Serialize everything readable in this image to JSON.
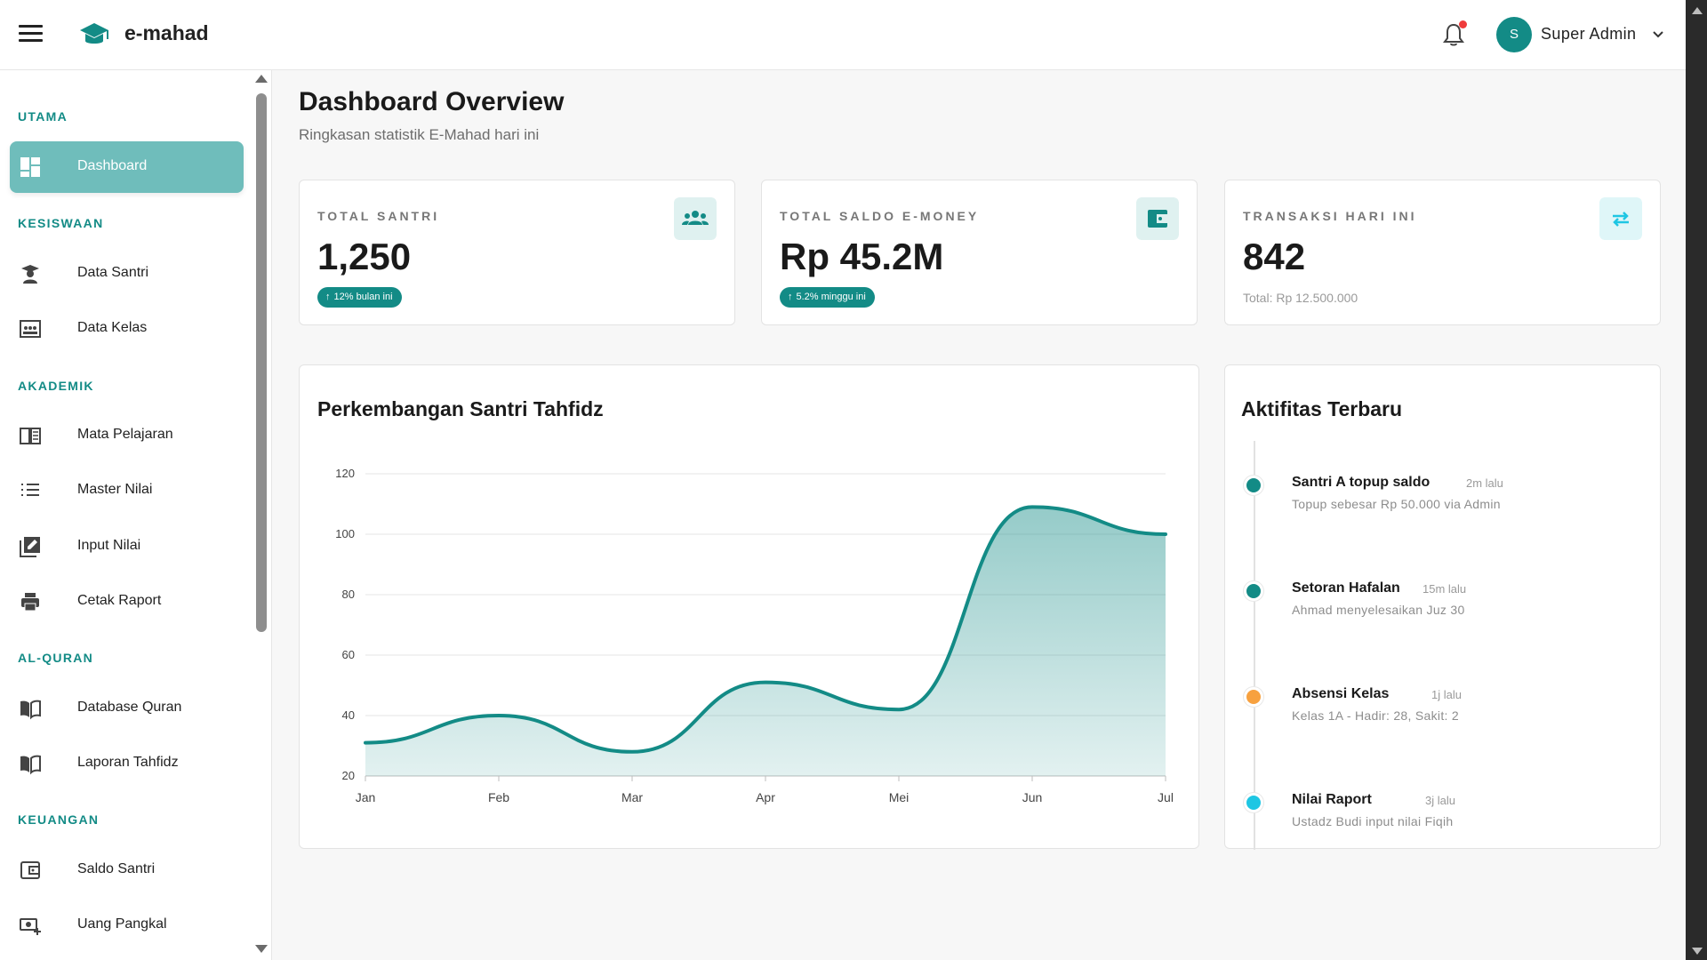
{
  "app": {
    "brand": "e-mahad"
  },
  "header": {
    "user_initial": "S",
    "user_name": "Super Admin",
    "has_notification": true
  },
  "sidebar": {
    "sections": [
      {
        "title": "UTAMA",
        "items": [
          {
            "label": "Dashboard",
            "icon": "dashboard-icon",
            "active": true
          }
        ]
      },
      {
        "title": "KESISWAAN",
        "items": [
          {
            "label": "Data Santri",
            "icon": "student-icon"
          },
          {
            "label": "Data Kelas",
            "icon": "class-icon"
          }
        ]
      },
      {
        "title": "AKADEMIK",
        "items": [
          {
            "label": "Mata Pelajaran",
            "icon": "book-icon"
          },
          {
            "label": "Master Nilai",
            "icon": "list-icon"
          },
          {
            "label": "Input Nilai",
            "icon": "edit-icon"
          },
          {
            "label": "Cetak Raport",
            "icon": "print-icon"
          }
        ]
      },
      {
        "title": "AL-QURAN",
        "items": [
          {
            "label": "Database Quran",
            "icon": "quran-icon"
          },
          {
            "label": "Laporan Tahfidz",
            "icon": "quran-icon"
          }
        ]
      },
      {
        "title": "KEUANGAN",
        "items": [
          {
            "label": "Saldo Santri",
            "icon": "wallet-icon"
          },
          {
            "label": "Uang Pangkal",
            "icon": "money-add-icon"
          }
        ]
      }
    ]
  },
  "page": {
    "title": "Dashboard Overview",
    "subtitle": "Ringkasan statistik E-Mahad hari ini"
  },
  "stats": [
    {
      "label": "TOTAL SANTRI",
      "value": "1,250",
      "badge": "12% bulan ini",
      "icon": "users-icon"
    },
    {
      "label": "TOTAL SALDO E-MONEY",
      "value": "Rp 45.2M",
      "badge": "5.2% minggu ini",
      "icon": "wallet-icon"
    },
    {
      "label": "TRANSAKSI HARI INI",
      "value": "842",
      "note": "Total: Rp 12.500.000",
      "icon": "swap-icon"
    }
  ],
  "chart": {
    "title": "Perkembangan Santri Tahfidz"
  },
  "chart_data": {
    "type": "area",
    "title": "Perkembangan Santri Tahfidz",
    "categories": [
      "Jan",
      "Feb",
      "Mar",
      "Apr",
      "Mei",
      "Jun",
      "Jul"
    ],
    "values": [
      31,
      40,
      28,
      51,
      42,
      109,
      100
    ],
    "ylim": [
      20,
      120
    ],
    "yticks": [
      20,
      40,
      60,
      80,
      100,
      120
    ],
    "grid": true,
    "color": "#138b86"
  },
  "activity": {
    "title": "Aktifitas Terbaru",
    "items": [
      {
        "name": "Santri A topup saldo",
        "time": "2m lalu",
        "desc": "Topup sebesar Rp 50.000 via Admin",
        "color": "#138b86"
      },
      {
        "name": "Setoran Hafalan",
        "time": "15m lalu",
        "desc": "Ahmad menyelesaikan Juz 30",
        "color": "#138b86"
      },
      {
        "name": "Absensi Kelas",
        "time": "1j lalu",
        "desc": "Kelas 1A - Hadir: 28, Sakit: 2",
        "color": "#f7a13f"
      },
      {
        "name": "Nilai Raport",
        "time": "3j lalu",
        "desc": "Ustadz Budi input nilai Fiqih",
        "color": "#1ec6e3"
      }
    ]
  },
  "colors": {
    "accent": "#138b86",
    "accent_light": "#6fbdbb",
    "icon_bg": "#dff1f0"
  }
}
